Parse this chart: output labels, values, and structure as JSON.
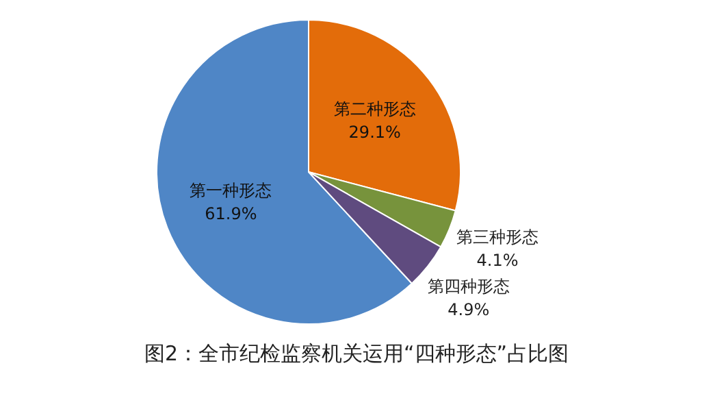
{
  "chart_data": {
    "type": "pie",
    "title": "图2：全市纪检监察机关运用“四种形态”占比图",
    "categories": [
      "第一种形态",
      "第二种形态",
      "第三种形态",
      "第四种形态"
    ],
    "values": [
      61.9,
      29.1,
      4.1,
      4.9
    ],
    "value_labels": [
      "61.9%",
      "29.1%",
      "4.1%",
      "4.9%"
    ],
    "colors": [
      "#4f86c6",
      "#e36c0a",
      "#77933c",
      "#5f4b7f"
    ],
    "legend": false
  }
}
